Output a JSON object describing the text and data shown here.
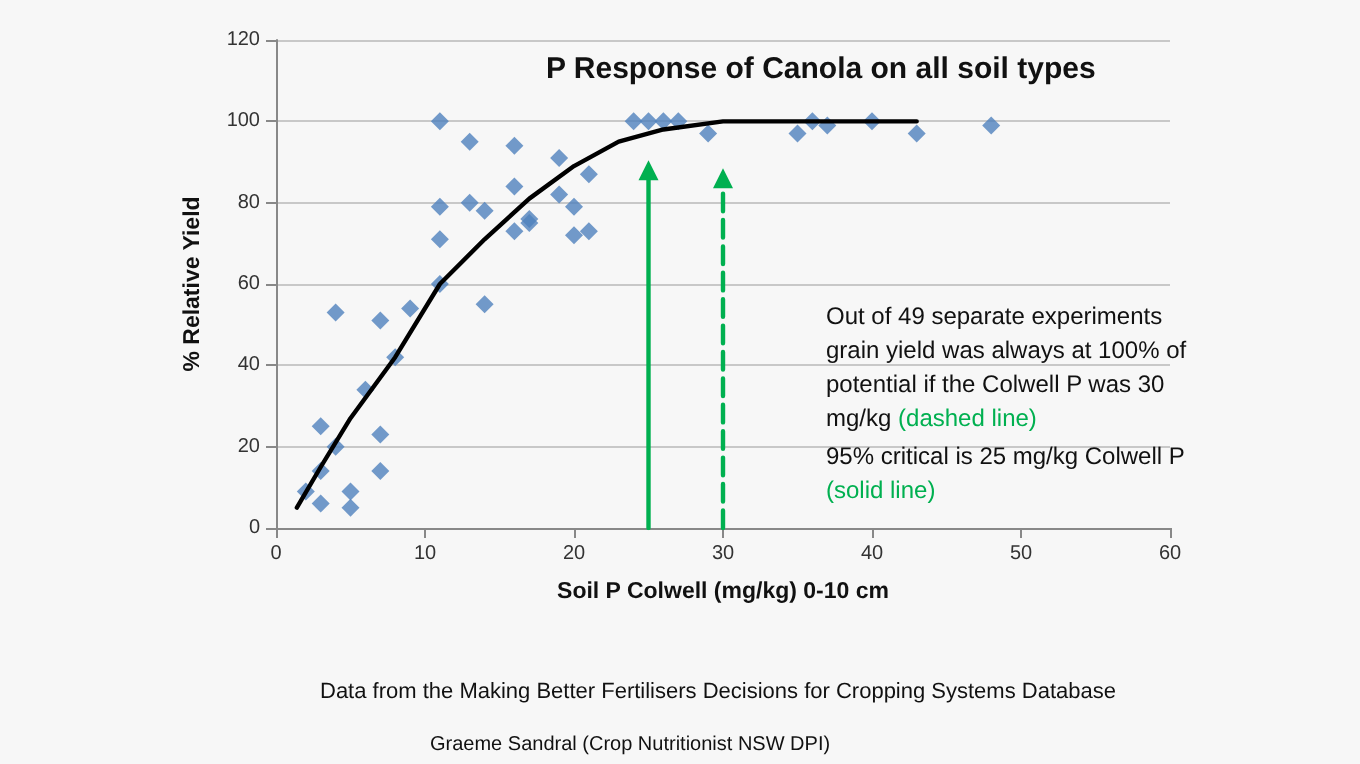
{
  "chart_data": {
    "type": "scatter",
    "title": "P Response of Canola on all soil types",
    "xlabel": "Soil P Colwell (mg/kg) 0-10 cm",
    "ylabel": "% Relative Yield",
    "xlim": [
      0,
      60
    ],
    "xticks": [
      0,
      10,
      20,
      30,
      40,
      50,
      60
    ],
    "ylim": [
      0,
      120
    ],
    "yticks": [
      0,
      20,
      40,
      60,
      80,
      100,
      120
    ],
    "grid": "y",
    "marker": "diamond",
    "series": [
      {
        "color": "#4f81bd",
        "x": [
          2,
          3,
          3,
          3,
          4,
          4,
          5,
          5,
          6,
          7,
          7,
          7,
          8,
          9,
          11,
          11,
          11,
          11,
          13,
          13,
          14,
          14,
          16,
          16,
          16,
          17,
          17,
          19,
          19,
          20,
          20,
          21,
          21,
          24,
          25,
          26,
          27,
          29,
          35,
          36,
          37,
          40,
          43,
          48
        ],
        "values": [
          9,
          14,
          25,
          6,
          20,
          53,
          9,
          5,
          34,
          51,
          23,
          14,
          42,
          54,
          60,
          71,
          79,
          100,
          80,
          95,
          78,
          55,
          73,
          94,
          84,
          76,
          75,
          91,
          82,
          79,
          72,
          87,
          73,
          100,
          100,
          100,
          100,
          97,
          97,
          100,
          99,
          100,
          97,
          99
        ]
      },
      {
        "type": "line",
        "color": "#000000",
        "marker": "none",
        "line_style": "solid",
        "x": [
          1.4,
          3,
          5,
          8,
          11,
          14,
          17,
          20,
          23,
          26,
          30,
          43
        ],
        "values": [
          5,
          15,
          27,
          42,
          60,
          71,
          81,
          89,
          95,
          98,
          100,
          100
        ]
      },
      {
        "type": "line",
        "color": "#00b050",
        "marker": "triangle",
        "line_style": "solid",
        "x": [
          25,
          25
        ],
        "values": [
          0,
          88
        ]
      },
      {
        "type": "line",
        "color": "#00b050",
        "marker": "triangle",
        "line_style": "dashed",
        "x": [
          30,
          30
        ],
        "values": [
          0,
          86
        ]
      }
    ],
    "annotations": [
      "Out of 49 separate experiments grain yield was always at 100% of potential if the Colwell P was 30 mg/kg",
      "(dashed line)",
      "95% critical is 25 mg/kg Colwell P",
      "(solid line)",
      "Data from the Making Better Fertilisers Decisions for Cropping Systems Database",
      "Graeme Sandral (Crop Nutritionist NSW DPI)"
    ]
  }
}
